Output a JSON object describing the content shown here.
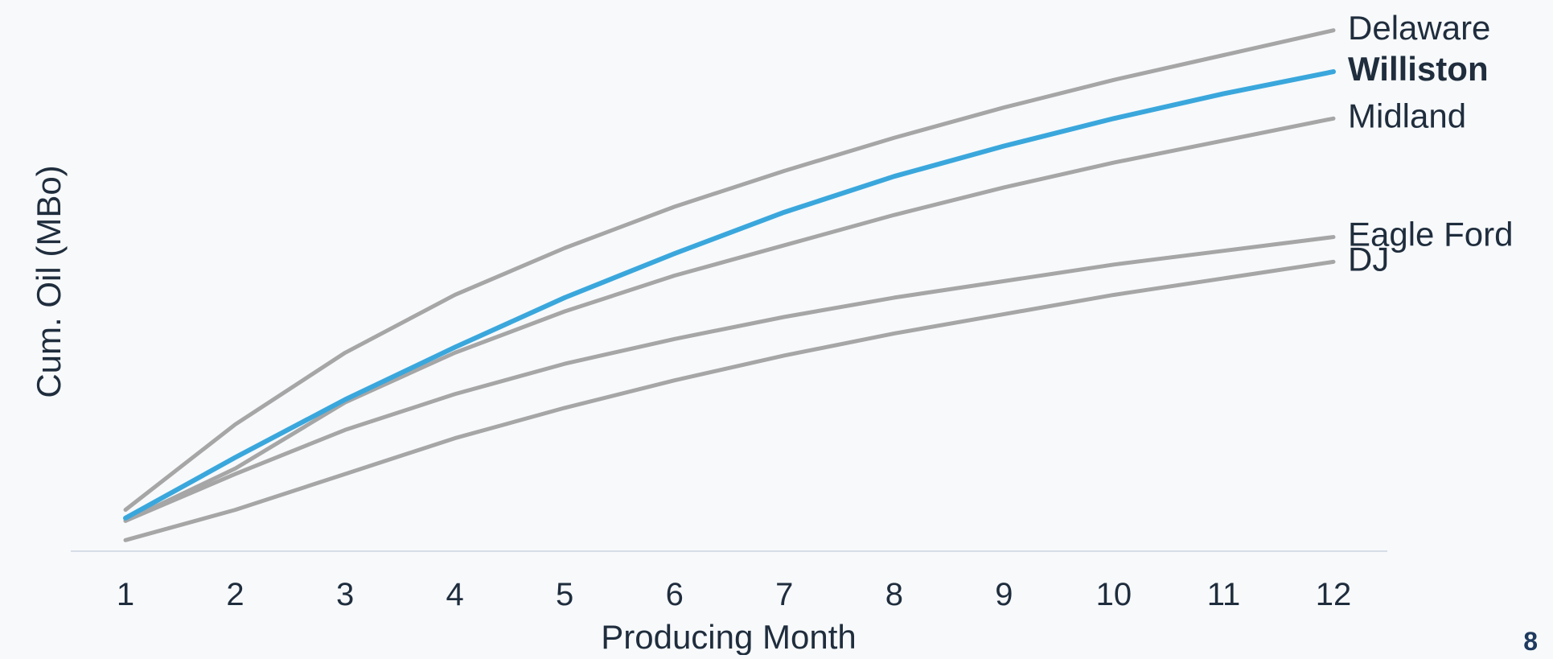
{
  "page_number": "8",
  "colors": {
    "background": "#f7f9fb",
    "muted_series": "#a6a6a6",
    "highlight_series": "#3aa7dc",
    "axis_line": "#d6dde6",
    "text": "#1f2d3d",
    "page_number": "#1f3a5f"
  },
  "chart_data": {
    "type": "line",
    "title": "",
    "xlabel": "Producing Month",
    "ylabel": "Cum. Oil (MBo)",
    "x": [
      1,
      2,
      3,
      4,
      5,
      6,
      7,
      8,
      9,
      10,
      11,
      12
    ],
    "x_tick_labels": [
      "1",
      "2",
      "3",
      "4",
      "5",
      "6",
      "7",
      "8",
      "9",
      "10",
      "11",
      "12"
    ],
    "y_tick_labels_visible": false,
    "ylim": [
      0,
      100
    ],
    "grid": false,
    "legend": "direct labels at right end of each line",
    "highlight_series": "Williston",
    "series": [
      {
        "name": "Delaware",
        "values": [
          7.5,
          23,
          36,
          46.5,
          55,
          62.5,
          69,
          75,
          80.5,
          85.5,
          90,
          94.5
        ]
      },
      {
        "name": "Williston",
        "values": [
          6,
          17,
          27.5,
          37,
          46,
          54,
          61.5,
          68,
          73.5,
          78.5,
          83,
          87
        ]
      },
      {
        "name": "Midland",
        "values": [
          5.5,
          15,
          27,
          36,
          43.5,
          50,
          55.5,
          61,
          66,
          70.5,
          74.5,
          78.5
        ]
      },
      {
        "name": "Eagle Ford",
        "values": [
          5.5,
          14,
          22,
          28.5,
          34,
          38.5,
          42.5,
          46,
          49,
          52,
          54.5,
          57
        ]
      },
      {
        "name": "DJ",
        "values": [
          2,
          7.5,
          14,
          20.5,
          26,
          31,
          35.5,
          39.5,
          43,
          46.5,
          49.5,
          52.5
        ]
      }
    ]
  }
}
